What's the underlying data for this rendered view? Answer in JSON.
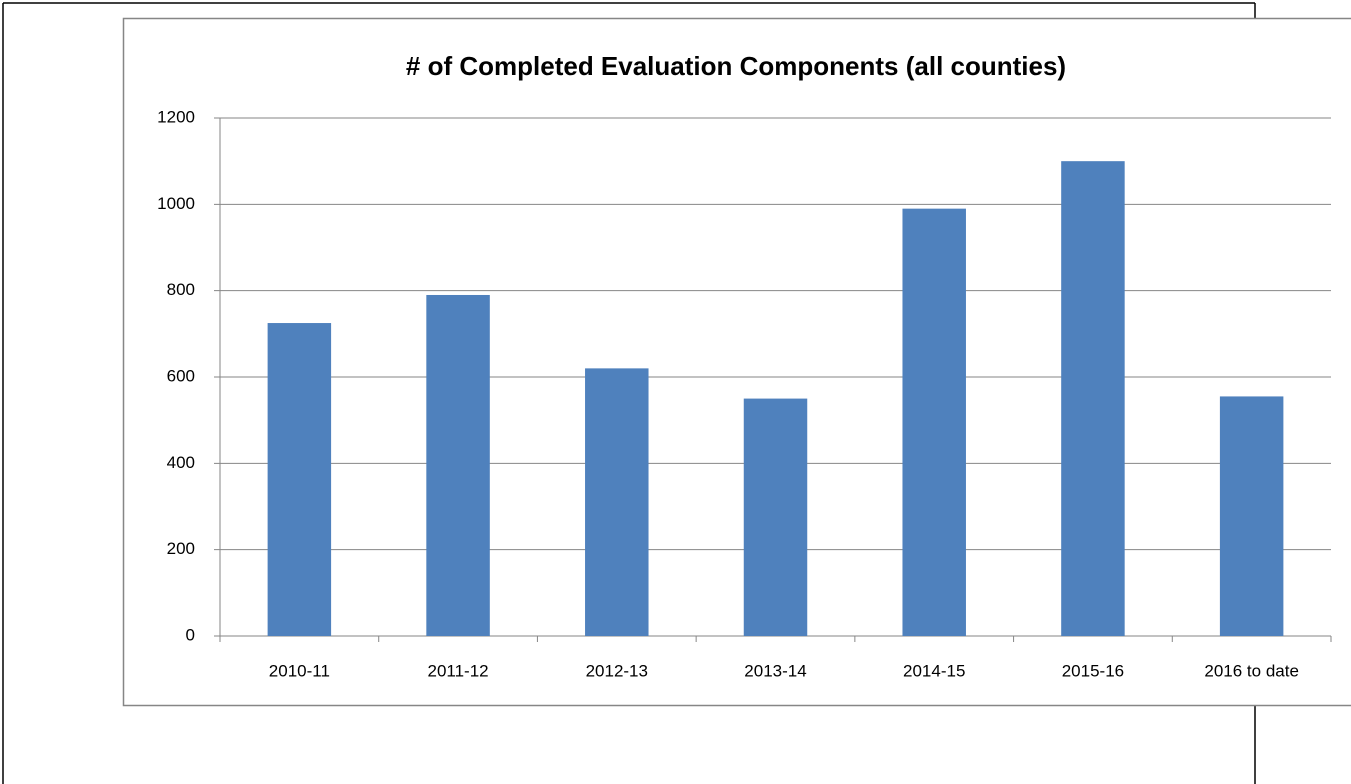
{
  "chart_data": {
    "type": "bar",
    "title": "# of Completed Evaluation Components (all counties)",
    "categories": [
      "2010-11",
      "2011-12",
      "2012-13",
      "2013-14",
      "2014-15",
      "2015-16",
      "2016 to date"
    ],
    "values": [
      725,
      790,
      620,
      550,
      990,
      1100,
      555
    ],
    "color": "#4f81bd",
    "ylim": [
      0,
      1200
    ],
    "yticks": [
      0,
      200,
      400,
      600,
      800,
      1000,
      1200
    ],
    "grid": true
  }
}
